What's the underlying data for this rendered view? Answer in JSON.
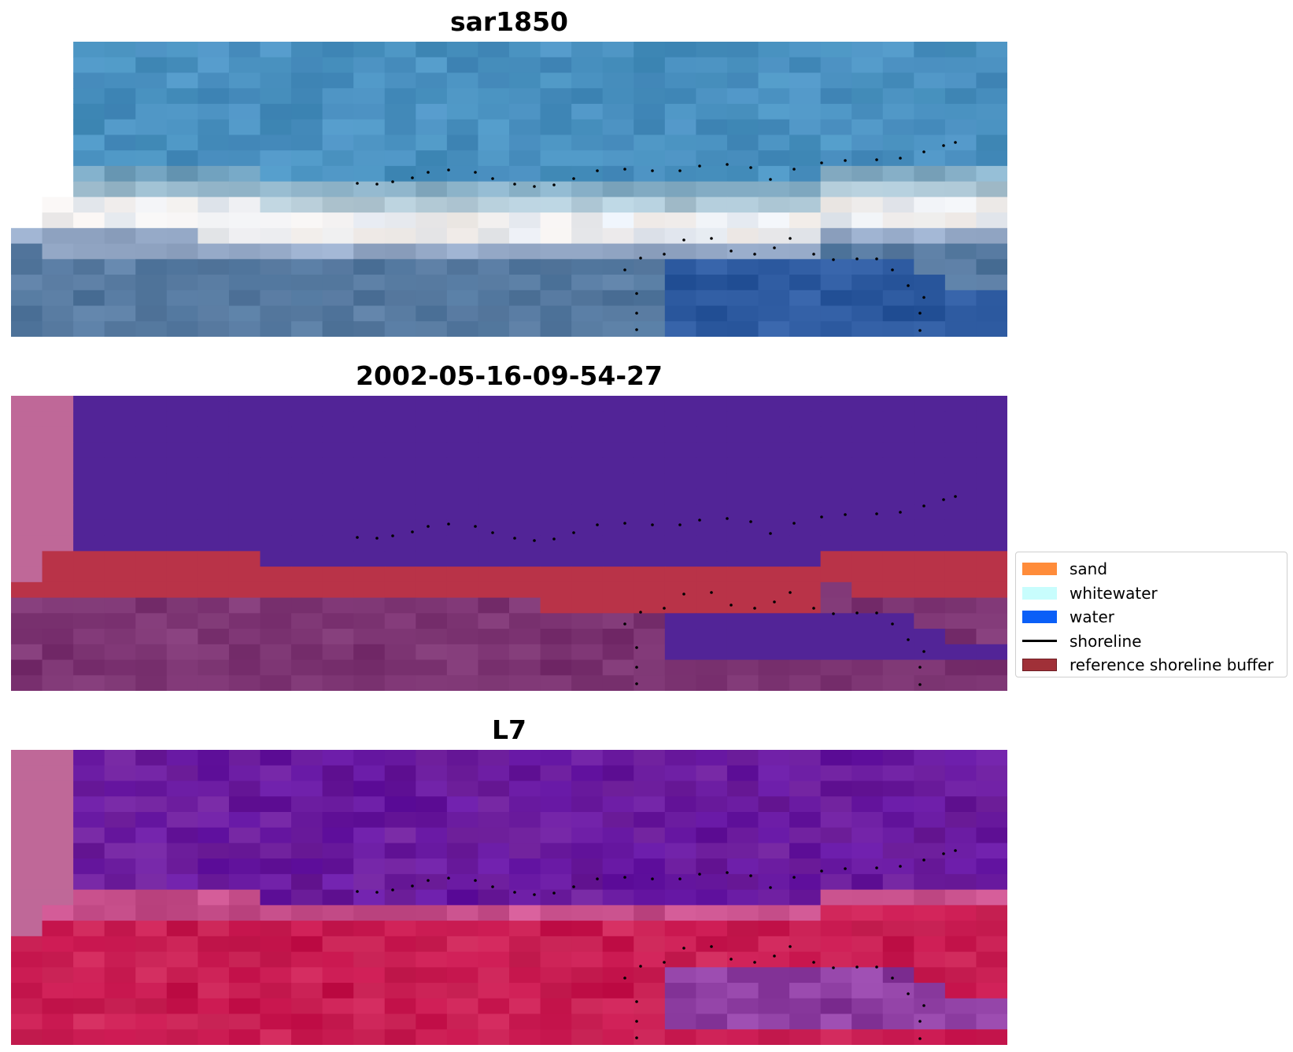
{
  "panels": [
    {
      "title": "sar1850"
    },
    {
      "title": "2002-05-16-09-54-27"
    },
    {
      "title": "L7"
    }
  ],
  "legend": {
    "items": [
      {
        "label": "sand",
        "color": "#ff8c3a",
        "kind": "patch"
      },
      {
        "label": "whitewater",
        "color": "#c8fdfd",
        "kind": "patch"
      },
      {
        "label": "water",
        "color": "#0a5ff7",
        "kind": "patch"
      },
      {
        "label": "shoreline",
        "color": "#000000",
        "kind": "line"
      },
      {
        "label": "reference shoreline buffer",
        "color": "#a03038",
        "edge": "#6e1e24",
        "kind": "patch"
      }
    ]
  },
  "colors": {
    "rgb_ocean": "#4a8fc0",
    "rgb_surf": "#e6ecf4",
    "rgb_beach": "#5c7ea4",
    "class_water": "#522497",
    "class_buffer": "#b93348",
    "class_land": "#762d6c",
    "class_nodata": "#bf6898",
    "swir_water": "#6e1f9a",
    "swir_land": "#c4114a",
    "swir_nodata": "#bf6898"
  }
}
